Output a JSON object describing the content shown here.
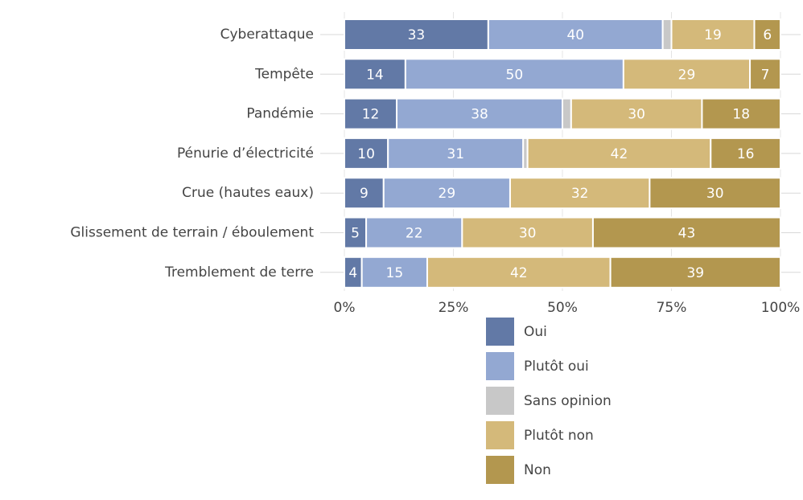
{
  "chart_data": {
    "type": "stacked-bar-horizontal",
    "categories": [
      "Cyberattaque",
      "Tempête",
      "Pandémie",
      "Pénurie d’électricité",
      "Crue (hautes eaux)",
      "Glissement de terrain / éboulement",
      "Tremblement de terre"
    ],
    "series": [
      {
        "name": "Oui",
        "color": "#6279a6",
        "values": [
          33,
          14,
          12,
          10,
          9,
          5,
          4
        ]
      },
      {
        "name": "Plutôt oui",
        "color": "#93a8d2",
        "values": [
          40,
          50,
          38,
          31,
          29,
          22,
          15
        ]
      },
      {
        "name": "Sans opinion",
        "color": "#c8c8c8",
        "values": [
          2,
          0,
          2,
          1,
          0,
          0,
          0
        ]
      },
      {
        "name": "Plutôt non",
        "color": "#d4b97a",
        "values": [
          19,
          29,
          30,
          42,
          32,
          30,
          42
        ]
      },
      {
        "name": "Non",
        "color": "#b3974f",
        "values": [
          6,
          7,
          18,
          16,
          30,
          43,
          39
        ]
      }
    ],
    "xlim": [
      0,
      100
    ],
    "xticks": [
      {
        "value": 0,
        "label": "0%"
      },
      {
        "value": 25,
        "label": "25%"
      },
      {
        "value": 50,
        "label": "50%"
      },
      {
        "value": 75,
        "label": "75%"
      },
      {
        "value": 100,
        "label": "100%"
      }
    ],
    "grid": true,
    "legend": "bottom"
  }
}
